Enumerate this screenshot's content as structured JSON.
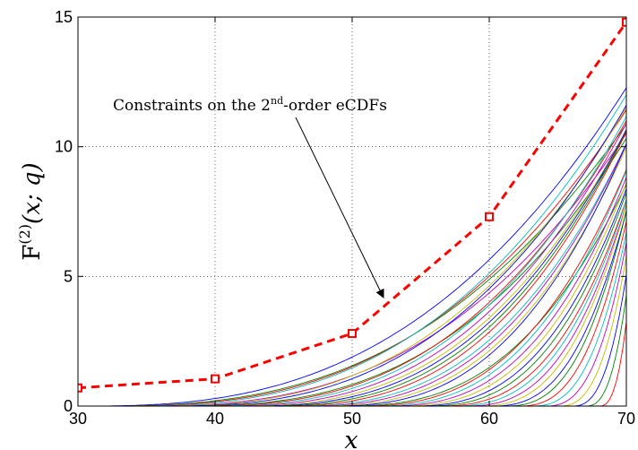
{
  "chart_data": {
    "type": "line",
    "xlabel": "x",
    "ylabel": {
      "base": "F",
      "sup": "(2)",
      "args": "(x; q)"
    },
    "xlim": [
      30,
      70
    ],
    "ylim": [
      0,
      15
    ],
    "x_ticks": [
      30,
      40,
      50,
      60,
      70
    ],
    "y_ticks": [
      0,
      5,
      10,
      15
    ],
    "x_tick_labels": [
      "30",
      "40",
      "50",
      "60",
      "70"
    ],
    "y_tick_labels": [
      "0",
      "5",
      "10",
      "15"
    ],
    "grid": true,
    "constraint_series": {
      "color": "#ff0000",
      "style": "dashed-square-markers",
      "x": [
        30,
        40,
        50,
        60,
        70
      ],
      "y": [
        0.7,
        1.05,
        2.8,
        7.3,
        14.8
      ]
    },
    "ecdf_curves": {
      "color_cycle": [
        "#0000ff",
        "#008000",
        "#ff0000",
        "#00bfbf",
        "#bf00bf",
        "#bfbf00"
      ],
      "onsets": [
        30,
        31,
        32,
        33,
        34,
        35,
        36,
        37,
        38,
        39,
        40,
        41,
        42,
        43,
        44,
        45,
        46,
        47,
        48,
        49,
        50,
        51,
        52,
        53,
        54,
        55,
        56,
        57,
        58,
        59,
        60,
        61,
        62,
        63,
        64,
        65,
        66,
        67,
        68
      ],
      "scales": [
        0.00058,
        0.00055,
        0.00062,
        0.0007,
        0.00066,
        0.00078,
        0.00085,
        0.00082,
        0.00095,
        0.00105,
        0.00112,
        0.0012,
        0.00132,
        0.00145,
        0.0016,
        0.0017,
        0.0019,
        0.0021,
        0.0024,
        0.0023,
        0.0028,
        0.0032,
        0.0036,
        0.0041,
        0.0047,
        0.0055,
        0.0064,
        0.0078,
        0.0095,
        0.012,
        0.015,
        0.02,
        0.026,
        0.035,
        0.05,
        0.075,
        0.12,
        0.22,
        0.5
      ]
    },
    "annotation": {
      "text_before": "Constraints on the 2",
      "sup": "nd",
      "text_after": "-order eCDFs"
    }
  }
}
